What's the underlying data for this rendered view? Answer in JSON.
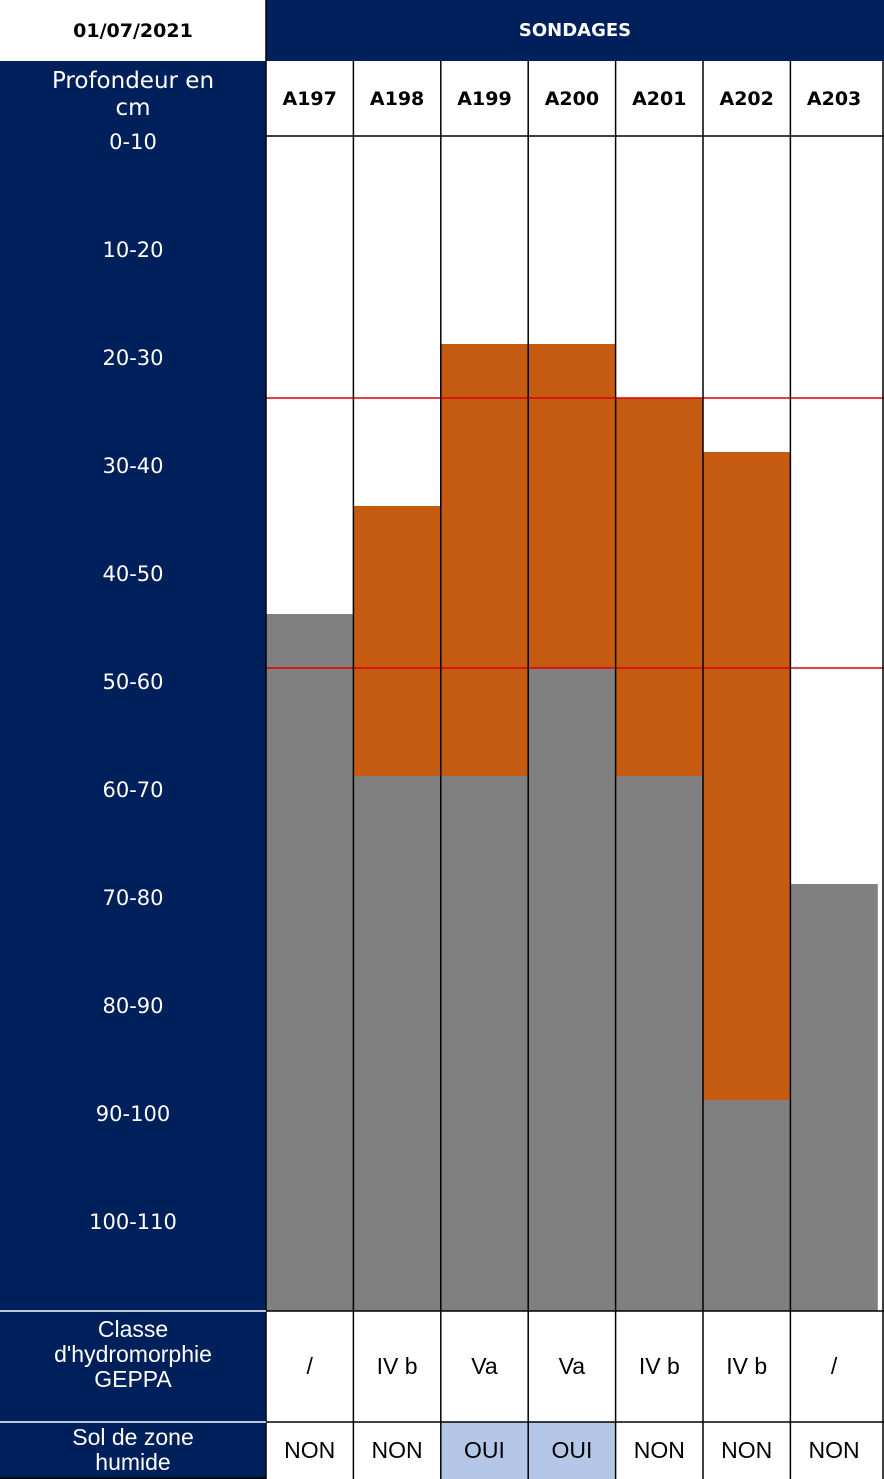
{
  "date": "01/07/2021",
  "title": "SONDAGES",
  "depth_header": [
    "Profondeur en",
    "cm"
  ],
  "classe_label": [
    "Classe",
    "d'hydromorphie",
    "GEPPA"
  ],
  "zone_label": [
    "Sol de zone",
    "humide"
  ],
  "colors": {
    "navy": "#00205b",
    "oxidation": "#c55a11",
    "reduction": "#808080",
    "highlight": "#b4c7e7",
    "threshold_line": "#e00000"
  },
  "chart_data": {
    "type": "table",
    "title": "SONDAGES",
    "ylabel": "Profondeur en cm",
    "depth_intervals": [
      "0-10",
      "10-20",
      "20-30",
      "30-40",
      "40-50",
      "50-60",
      "60-70",
      "70-80",
      "80-90",
      "90-100",
      "100-110"
    ],
    "ylim": [
      0,
      110
    ],
    "threshold_depths_cm": [
      25,
      50
    ],
    "columns": [
      {
        "name": "A197",
        "oxidation_cm": null,
        "reduction_from_cm": 45,
        "classe": "/",
        "zone_humide": "NON"
      },
      {
        "name": "A198",
        "oxidation_cm": [
          35,
          60
        ],
        "reduction_from_cm": 60,
        "classe": "IV b",
        "zone_humide": "NON"
      },
      {
        "name": "A199",
        "oxidation_cm": [
          20,
          60
        ],
        "reduction_from_cm": 60,
        "classe": "Va",
        "zone_humide": "OUI"
      },
      {
        "name": "A200",
        "oxidation_cm": [
          20,
          50
        ],
        "reduction_from_cm": 50,
        "classe": "Va",
        "zone_humide": "OUI"
      },
      {
        "name": "A201",
        "oxidation_cm": [
          25,
          60
        ],
        "reduction_from_cm": 60,
        "classe": "IV b",
        "zone_humide": "NON"
      },
      {
        "name": "A202",
        "oxidation_cm": [
          30,
          90
        ],
        "reduction_from_cm": 90,
        "classe": "IV b",
        "zone_humide": "NON"
      },
      {
        "name": "A203",
        "oxidation_cm": null,
        "reduction_from_cm": 70,
        "classe": "/",
        "zone_humide": "NON"
      }
    ]
  }
}
